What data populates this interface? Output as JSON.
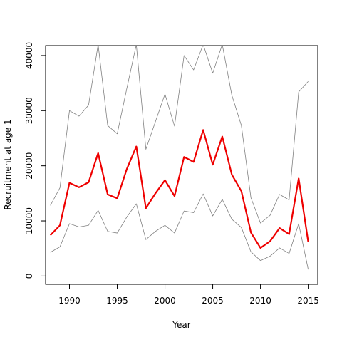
{
  "chart_data": {
    "type": "line",
    "title": "",
    "xlabel": "Year",
    "ylabel": "Recruitment at age 1",
    "xlim": [
      1987.5,
      2016
    ],
    "ylim": [
      -1500,
      41800
    ],
    "x_ticks": [
      1990,
      1995,
      2000,
      2005,
      2010,
      2015
    ],
    "y_ticks": [
      0,
      10000,
      20000,
      30000,
      40000
    ],
    "x_tick_labels": [
      "1990",
      "1995",
      "2000",
      "2005",
      "2010",
      "2015"
    ],
    "y_tick_labels": [
      "0",
      "10000",
      "20000",
      "30000",
      "40000"
    ],
    "grid": false,
    "legend": "none",
    "x": [
      1988,
      1989,
      1990,
      1991,
      1992,
      1993,
      1994,
      1995,
      1996,
      1997,
      1998,
      1999,
      2000,
      2001,
      2002,
      2003,
      2004,
      2005,
      2006,
      2007,
      2008,
      2009,
      2010,
      2011,
      2012,
      2013,
      2014,
      2015
    ],
    "series": [
      {
        "role": "upper",
        "color": "#808080",
        "values": [
          12800,
          16000,
          30000,
          29000,
          31000,
          42000,
          27300,
          25800,
          34000,
          42000,
          23000,
          28000,
          33000,
          27200,
          40000,
          37400,
          42000,
          36800,
          42000,
          32800,
          27300,
          14200,
          9600,
          11000,
          14800,
          13800,
          33400,
          35300
        ]
      },
      {
        "role": "estimate",
        "color": "#ee0000",
        "values": [
          7400,
          9200,
          16900,
          16100,
          17000,
          22300,
          14800,
          14100,
          19400,
          23500,
          12300,
          15000,
          17400,
          14500,
          21600,
          20700,
          26500,
          20200,
          25300,
          18400,
          15400,
          7900,
          5100,
          6300,
          8700,
          7600,
          17700,
          6200
        ]
      },
      {
        "role": "lower",
        "color": "#808080",
        "values": [
          4300,
          5300,
          9500,
          8900,
          9200,
          11900,
          8100,
          7800,
          10700,
          13100,
          6600,
          8100,
          9200,
          7800,
          11800,
          11500,
          14900,
          10900,
          13900,
          10300,
          8800,
          4400,
          2800,
          3600,
          5100,
          4100,
          9500,
          1200
        ]
      }
    ]
  }
}
